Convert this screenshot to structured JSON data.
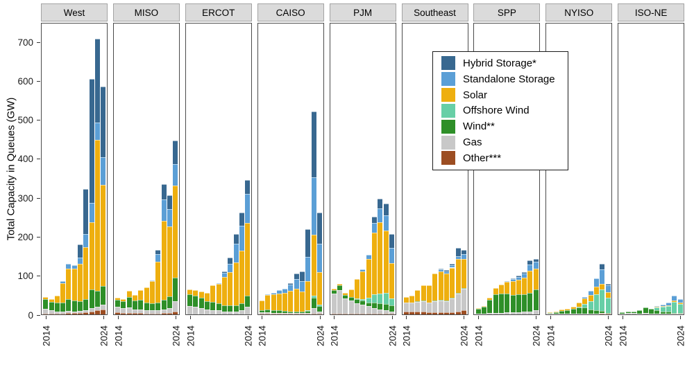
{
  "figure": {
    "y_axis_title": "Total Capacity in Queues (GW)",
    "x_tick_labels": [
      "2014",
      "2024"
    ]
  },
  "legend": {
    "entries": [
      {
        "key": "hybrid",
        "label": "Hybrid Storage*"
      },
      {
        "key": "standalone",
        "label": "Standalone Storage"
      },
      {
        "key": "solar",
        "label": "Solar"
      },
      {
        "key": "offshore",
        "label": "Offshore Wind"
      },
      {
        "key": "wind",
        "label": "Wind**"
      },
      {
        "key": "gas",
        "label": "Gas"
      },
      {
        "key": "other",
        "label": "Other***"
      }
    ]
  },
  "chart_data": {
    "type": "bar",
    "stacked": true,
    "faceted": true,
    "title": "",
    "ylabel": "Total Capacity in Queues (GW)",
    "xlabel": "",
    "ylim": [
      0,
      750
    ],
    "y_ticks": [
      0,
      100,
      200,
      300,
      400,
      500,
      600,
      700
    ],
    "grid": false,
    "legend_position": "floating-over-Southeast-and-SPP-panels",
    "x": [
      2014,
      2015,
      2016,
      2017,
      2018,
      2019,
      2020,
      2021,
      2022,
      2023,
      2024
    ],
    "x_shown_tick_labels": [
      "2014",
      "2024"
    ],
    "stack_order_bottom_to_top": [
      "other",
      "gas",
      "wind",
      "offshore",
      "solar",
      "standalone",
      "hybrid"
    ],
    "series_labels": {
      "hybrid": "Hybrid Storage*",
      "standalone": "Standalone Storage",
      "solar": "Solar",
      "offshore": "Offshore Wind",
      "wind": "Wind**",
      "gas": "Gas",
      "other": "Other***"
    },
    "colors": {
      "hybrid": "#386890",
      "standalone": "#5b9fd6",
      "solar": "#eeaf0f",
      "offshore": "#67cfa6",
      "wind": "#2e8f28",
      "gas": "#c8c8c8",
      "other": "#9c4d22"
    },
    "units": "GW",
    "facets": [
      {
        "name": "West",
        "values_gw": {
          "other": [
            2,
            2,
            2,
            2,
            3,
            3,
            4,
            5,
            8,
            11,
            13
          ],
          "gas": [
            12,
            8,
            6,
            6,
            6,
            5,
            5,
            6,
            8,
            8,
            12
          ],
          "wind": [
            25,
            22,
            22,
            22,
            30,
            28,
            25,
            28,
            48,
            42,
            48
          ],
          "offshore": [
            0,
            0,
            0,
            0,
            0,
            0,
            0,
            0,
            0,
            0,
            0
          ],
          "solar": [
            6,
            8,
            18,
            50,
            79,
            81,
            96,
            133,
            172,
            387,
            259
          ],
          "standalone": [
            0,
            0,
            0,
            5,
            12,
            10,
            15,
            35,
            51,
            44,
            72
          ],
          "hybrid": [
            0,
            0,
            0,
            0,
            0,
            0,
            35,
            115,
            318,
            215,
            181
          ]
        }
      },
      {
        "name": "MISO",
        "values_gw": {
          "other": [
            5,
            4,
            4,
            3,
            3,
            2,
            2,
            2,
            3,
            4,
            8
          ],
          "gas": [
            15,
            12,
            14,
            10,
            10,
            8,
            8,
            8,
            10,
            12,
            25
          ],
          "wind": [
            18,
            18,
            26,
            22,
            25,
            20,
            18,
            20,
            25,
            30,
            62
          ],
          "offshore": [
            0,
            0,
            0,
            0,
            0,
            0,
            0,
            0,
            0,
            0,
            0
          ],
          "solar": [
            4,
            6,
            16,
            15,
            24,
            40,
            58,
            105,
            202,
            180,
            235
          ],
          "standalone": [
            0,
            0,
            0,
            0,
            0,
            0,
            2,
            20,
            55,
            45,
            55
          ],
          "hybrid": [
            0,
            0,
            0,
            0,
            0,
            0,
            0,
            10,
            40,
            34,
            62
          ]
        }
      },
      {
        "name": "ERCOT",
        "values_gw": {
          "other": [
            0,
            0,
            0,
            0,
            0,
            0,
            0,
            0,
            0,
            0,
            0
          ],
          "gas": [
            22,
            20,
            16,
            12,
            10,
            10,
            8,
            8,
            8,
            10,
            20
          ],
          "wind": [
            30,
            28,
            26,
            22,
            22,
            18,
            16,
            15,
            16,
            18,
            28
          ],
          "offshore": [
            0,
            0,
            0,
            0,
            0,
            0,
            0,
            0,
            0,
            0,
            0
          ],
          "solar": [
            12,
            14,
            16,
            21,
            43,
            50,
            72,
            85,
            110,
            136,
            187
          ],
          "standalone": [
            0,
            0,
            0,
            0,
            0,
            2,
            10,
            22,
            48,
            63,
            75
          ],
          "hybrid": [
            0,
            0,
            0,
            0,
            0,
            0,
            5,
            15,
            25,
            35,
            35
          ]
        }
      },
      {
        "name": "CAISO",
        "values_gw": {
          "other": [
            1,
            1,
            1,
            1,
            1,
            1,
            1,
            1,
            1,
            2,
            2
          ],
          "gas": [
            4,
            4,
            3,
            3,
            3,
            2,
            2,
            2,
            2,
            14,
            5
          ],
          "wind": [
            6,
            7,
            6,
            6,
            5,
            5,
            5,
            5,
            6,
            26,
            15
          ],
          "offshore": [
            0,
            0,
            0,
            0,
            0,
            0,
            0,
            0,
            2,
            6,
            3
          ],
          "solar": [
            24,
            38,
            42,
            44,
            46,
            52,
            57,
            50,
            75,
            156,
            83
          ],
          "standalone": [
            0,
            2,
            3,
            8,
            10,
            16,
            25,
            28,
            62,
            148,
            74
          ],
          "hybrid": [
            0,
            0,
            0,
            0,
            0,
            4,
            15,
            25,
            70,
            168,
            80
          ]
        }
      },
      {
        "name": "PJM",
        "values_gw": {
          "other": [
            2,
            2,
            1,
            1,
            1,
            1,
            1,
            1,
            1,
            1,
            1
          ],
          "gas": [
            52,
            60,
            40,
            34,
            28,
            24,
            20,
            15,
            12,
            10,
            6
          ],
          "wind": [
            8,
            12,
            8,
            10,
            10,
            10,
            10,
            15,
            15,
            15,
            16
          ],
          "offshore": [
            0,
            0,
            0,
            0,
            2,
            5,
            12,
            20,
            25,
            30,
            18
          ],
          "solar": [
            3,
            5,
            6,
            19,
            49,
            70,
            100,
            159,
            184,
            159,
            91
          ],
          "standalone": [
            0,
            0,
            0,
            0,
            0,
            5,
            10,
            25,
            35,
            40,
            39
          ],
          "hybrid": [
            0,
            0,
            0,
            0,
            0,
            0,
            0,
            15,
            25,
            30,
            36
          ]
        }
      },
      {
        "name": "Southeast",
        "values_gw": {
          "other": [
            8,
            8,
            8,
            8,
            6,
            6,
            6,
            5,
            6,
            8,
            10
          ],
          "gas": [
            22,
            22,
            24,
            26,
            24,
            28,
            30,
            28,
            35,
            45,
            55
          ],
          "wind": [
            1,
            1,
            1,
            1,
            1,
            2,
            2,
            2,
            2,
            3,
            3
          ],
          "offshore": [
            0,
            0,
            0,
            0,
            0,
            0,
            0,
            0,
            0,
            0,
            0
          ],
          "solar": [
            14,
            17,
            29,
            40,
            44,
            69,
            72,
            70,
            77,
            86,
            75
          ],
          "standalone": [
            0,
            0,
            0,
            0,
            0,
            0,
            5,
            5,
            6,
            8,
            12
          ],
          "hybrid": [
            0,
            0,
            0,
            0,
            0,
            0,
            3,
            3,
            4,
            20,
            10
          ]
        }
      },
      {
        "name": "SPP",
        "values_gw": {
          "other": [
            0,
            0,
            0,
            0,
            0,
            0,
            0,
            0,
            0,
            0,
            0
          ],
          "gas": [
            2,
            2,
            3,
            4,
            4,
            5,
            5,
            6,
            7,
            8,
            10
          ],
          "wind": [
            12,
            17,
            34,
            48,
            50,
            48,
            45,
            45,
            45,
            48,
            54
          ],
          "offshore": [
            0,
            0,
            0,
            0,
            0,
            0,
            0,
            0,
            0,
            0,
            0
          ],
          "solar": [
            2,
            3,
            6,
            15,
            22,
            30,
            36,
            38,
            42,
            56,
            53
          ],
          "standalone": [
            0,
            0,
            0,
            0,
            0,
            2,
            5,
            7,
            10,
            16,
            18
          ],
          "hybrid": [
            0,
            0,
            0,
            0,
            0,
            0,
            2,
            3,
            4,
            10,
            7
          ]
        }
      },
      {
        "name": "NYISO",
        "values_gw": {
          "other": [
            0,
            0,
            0,
            0,
            0,
            0,
            0,
            0,
            0,
            1,
            1
          ],
          "gas": [
            1,
            1,
            2,
            2,
            2,
            2,
            2,
            2,
            2,
            3,
            1
          ],
          "wind": [
            3,
            5,
            7,
            9,
            12,
            16,
            16,
            10,
            8,
            5,
            2
          ],
          "offshore": [
            0,
            0,
            0,
            0,
            0,
            1,
            9,
            22,
            42,
            55,
            38
          ],
          "solar": [
            1,
            2,
            3,
            4,
            6,
            11,
            14,
            16,
            20,
            14,
            15
          ],
          "standalone": [
            0,
            0,
            0,
            0,
            0,
            0,
            4,
            10,
            21,
            37,
            17
          ],
          "hybrid": [
            0,
            0,
            0,
            0,
            0,
            0,
            0,
            0,
            0,
            14,
            4
          ]
        }
      },
      {
        "name": "ISO-NE",
        "values_gw": {
          "other": [
            0,
            0,
            0,
            0,
            0,
            0,
            0,
            0,
            0,
            0,
            0
          ],
          "gas": [
            1,
            3,
            3,
            2,
            4,
            2,
            2,
            2,
            2,
            1,
            1
          ],
          "wind": [
            5,
            5,
            5,
            8,
            14,
            12,
            8,
            6,
            5,
            3,
            2
          ],
          "offshore": [
            0,
            0,
            0,
            0,
            0,
            0,
            8,
            12,
            15,
            28,
            24
          ],
          "solar": [
            0,
            0,
            0,
            0,
            0,
            0,
            1,
            1,
            2,
            4,
            4
          ],
          "standalone": [
            0,
            0,
            0,
            0,
            0,
            0,
            1,
            4,
            6,
            12,
            9
          ],
          "hybrid": [
            0,
            0,
            0,
            0,
            0,
            0,
            0,
            0,
            0,
            0,
            0
          ]
        }
      }
    ]
  }
}
